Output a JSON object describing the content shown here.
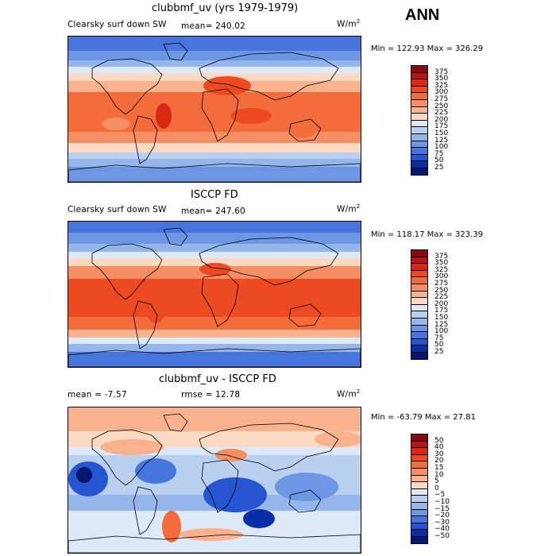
{
  "season": "ANN",
  "panels": [
    {
      "title": "clubbmf_uv (yrs 1979-1979)",
      "left_label": "Clearsky surf down SW",
      "mid_label": "mean= 240.02",
      "units": "W/m",
      "units_sup": "2",
      "minmax": "Min = 122.93 Max = 326.29",
      "levels": [
        "375",
        "350",
        "325",
        "300",
        "275",
        "250",
        "225",
        "200",
        "175",
        "150",
        "125",
        "100",
        "75",
        "50",
        "25"
      ],
      "colors": [
        "#8b0a0a",
        "#b4190f",
        "#d62a15",
        "#ec4a20",
        "#f26c3c",
        "#f58f63",
        "#f8b38e",
        "#fbd9c2",
        "#dde9f7",
        "#b9d0f0",
        "#94b6ea",
        "#6d97e3",
        "#4675dc",
        "#2555d0",
        "#0a2ea8",
        "#06186e"
      ],
      "mode": "abs1"
    },
    {
      "title": "ISCCP FD",
      "left_label": "Clearsky surf down SW",
      "mid_label": "mean= 247.60",
      "units": "W/m",
      "units_sup": "2",
      "minmax": "Min = 118.17 Max = 323.39",
      "levels": [
        "375",
        "350",
        "325",
        "300",
        "275",
        "250",
        "225",
        "200",
        "175",
        "150",
        "125",
        "100",
        "75",
        "50",
        "25"
      ],
      "colors": [
        "#8b0a0a",
        "#b4190f",
        "#d62a15",
        "#ec4a20",
        "#f26c3c",
        "#f58f63",
        "#f8b38e",
        "#fbd9c2",
        "#dde9f7",
        "#b9d0f0",
        "#94b6ea",
        "#6d97e3",
        "#4675dc",
        "#2555d0",
        "#0a2ea8",
        "#06186e"
      ],
      "mode": "abs2"
    },
    {
      "title": "clubbmf_uv - ISCCP FD",
      "left_label": "mean =   -7.57",
      "mid_label": "rmse =   12.78",
      "units": "W/m",
      "units_sup": "2",
      "minmax": "Min = -63.79 Max =  27.81",
      "levels": [
        "50",
        "40",
        "30",
        "20",
        "15",
        "10",
        "5",
        "0",
        "−5",
        "−10",
        "−15",
        "−20",
        "−30",
        "−40",
        "−50"
      ],
      "colors": [
        "#8b0a0a",
        "#b4190f",
        "#d62a15",
        "#ec4a20",
        "#f26c3c",
        "#f58f63",
        "#f8b38e",
        "#fbd9c2",
        "#dde9f7",
        "#b9d0f0",
        "#94b6ea",
        "#6d97e3",
        "#4675dc",
        "#2555d0",
        "#0a2ea8",
        "#06186e"
      ],
      "mode": "diff"
    }
  ]
}
